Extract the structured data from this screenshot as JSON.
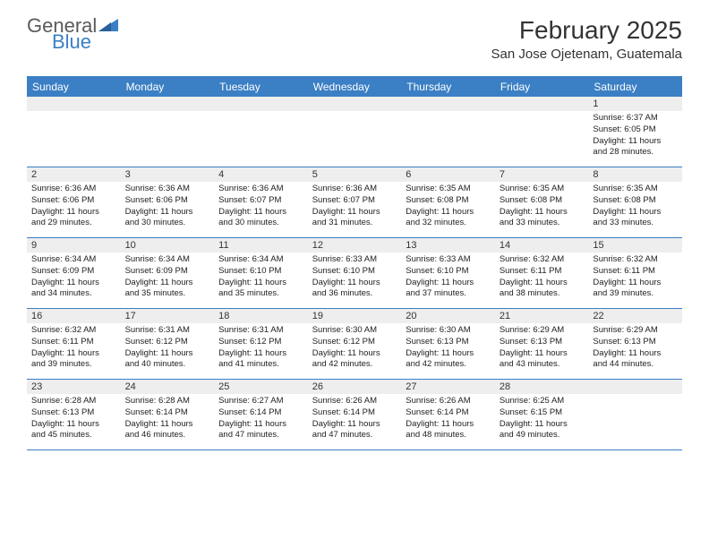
{
  "logo": {
    "general": "General",
    "blue": "Blue"
  },
  "title": "February 2025",
  "location": "San Jose Ojetenam, Guatemala",
  "day_headers": [
    "Sunday",
    "Monday",
    "Tuesday",
    "Wednesday",
    "Thursday",
    "Friday",
    "Saturday"
  ],
  "colors": {
    "brand_blue": "#3b7fc4",
    "header_gray": "#eeeeee",
    "text": "#222222",
    "logo_gray": "#5a5a5a"
  },
  "weeks": [
    [
      null,
      null,
      null,
      null,
      null,
      null,
      {
        "n": "1",
        "sr": "Sunrise: 6:37 AM",
        "ss": "Sunset: 6:05 PM",
        "dl1": "Daylight: 11 hours",
        "dl2": "and 28 minutes."
      }
    ],
    [
      {
        "n": "2",
        "sr": "Sunrise: 6:36 AM",
        "ss": "Sunset: 6:06 PM",
        "dl1": "Daylight: 11 hours",
        "dl2": "and 29 minutes."
      },
      {
        "n": "3",
        "sr": "Sunrise: 6:36 AM",
        "ss": "Sunset: 6:06 PM",
        "dl1": "Daylight: 11 hours",
        "dl2": "and 30 minutes."
      },
      {
        "n": "4",
        "sr": "Sunrise: 6:36 AM",
        "ss": "Sunset: 6:07 PM",
        "dl1": "Daylight: 11 hours",
        "dl2": "and 30 minutes."
      },
      {
        "n": "5",
        "sr": "Sunrise: 6:36 AM",
        "ss": "Sunset: 6:07 PM",
        "dl1": "Daylight: 11 hours",
        "dl2": "and 31 minutes."
      },
      {
        "n": "6",
        "sr": "Sunrise: 6:35 AM",
        "ss": "Sunset: 6:08 PM",
        "dl1": "Daylight: 11 hours",
        "dl2": "and 32 minutes."
      },
      {
        "n": "7",
        "sr": "Sunrise: 6:35 AM",
        "ss": "Sunset: 6:08 PM",
        "dl1": "Daylight: 11 hours",
        "dl2": "and 33 minutes."
      },
      {
        "n": "8",
        "sr": "Sunrise: 6:35 AM",
        "ss": "Sunset: 6:08 PM",
        "dl1": "Daylight: 11 hours",
        "dl2": "and 33 minutes."
      }
    ],
    [
      {
        "n": "9",
        "sr": "Sunrise: 6:34 AM",
        "ss": "Sunset: 6:09 PM",
        "dl1": "Daylight: 11 hours",
        "dl2": "and 34 minutes."
      },
      {
        "n": "10",
        "sr": "Sunrise: 6:34 AM",
        "ss": "Sunset: 6:09 PM",
        "dl1": "Daylight: 11 hours",
        "dl2": "and 35 minutes."
      },
      {
        "n": "11",
        "sr": "Sunrise: 6:34 AM",
        "ss": "Sunset: 6:10 PM",
        "dl1": "Daylight: 11 hours",
        "dl2": "and 35 minutes."
      },
      {
        "n": "12",
        "sr": "Sunrise: 6:33 AM",
        "ss": "Sunset: 6:10 PM",
        "dl1": "Daylight: 11 hours",
        "dl2": "and 36 minutes."
      },
      {
        "n": "13",
        "sr": "Sunrise: 6:33 AM",
        "ss": "Sunset: 6:10 PM",
        "dl1": "Daylight: 11 hours",
        "dl2": "and 37 minutes."
      },
      {
        "n": "14",
        "sr": "Sunrise: 6:32 AM",
        "ss": "Sunset: 6:11 PM",
        "dl1": "Daylight: 11 hours",
        "dl2": "and 38 minutes."
      },
      {
        "n": "15",
        "sr": "Sunrise: 6:32 AM",
        "ss": "Sunset: 6:11 PM",
        "dl1": "Daylight: 11 hours",
        "dl2": "and 39 minutes."
      }
    ],
    [
      {
        "n": "16",
        "sr": "Sunrise: 6:32 AM",
        "ss": "Sunset: 6:11 PM",
        "dl1": "Daylight: 11 hours",
        "dl2": "and 39 minutes."
      },
      {
        "n": "17",
        "sr": "Sunrise: 6:31 AM",
        "ss": "Sunset: 6:12 PM",
        "dl1": "Daylight: 11 hours",
        "dl2": "and 40 minutes."
      },
      {
        "n": "18",
        "sr": "Sunrise: 6:31 AM",
        "ss": "Sunset: 6:12 PM",
        "dl1": "Daylight: 11 hours",
        "dl2": "and 41 minutes."
      },
      {
        "n": "19",
        "sr": "Sunrise: 6:30 AM",
        "ss": "Sunset: 6:12 PM",
        "dl1": "Daylight: 11 hours",
        "dl2": "and 42 minutes."
      },
      {
        "n": "20",
        "sr": "Sunrise: 6:30 AM",
        "ss": "Sunset: 6:13 PM",
        "dl1": "Daylight: 11 hours",
        "dl2": "and 42 minutes."
      },
      {
        "n": "21",
        "sr": "Sunrise: 6:29 AM",
        "ss": "Sunset: 6:13 PM",
        "dl1": "Daylight: 11 hours",
        "dl2": "and 43 minutes."
      },
      {
        "n": "22",
        "sr": "Sunrise: 6:29 AM",
        "ss": "Sunset: 6:13 PM",
        "dl1": "Daylight: 11 hours",
        "dl2": "and 44 minutes."
      }
    ],
    [
      {
        "n": "23",
        "sr": "Sunrise: 6:28 AM",
        "ss": "Sunset: 6:13 PM",
        "dl1": "Daylight: 11 hours",
        "dl2": "and 45 minutes."
      },
      {
        "n": "24",
        "sr": "Sunrise: 6:28 AM",
        "ss": "Sunset: 6:14 PM",
        "dl1": "Daylight: 11 hours",
        "dl2": "and 46 minutes."
      },
      {
        "n": "25",
        "sr": "Sunrise: 6:27 AM",
        "ss": "Sunset: 6:14 PM",
        "dl1": "Daylight: 11 hours",
        "dl2": "and 47 minutes."
      },
      {
        "n": "26",
        "sr": "Sunrise: 6:26 AM",
        "ss": "Sunset: 6:14 PM",
        "dl1": "Daylight: 11 hours",
        "dl2": "and 47 minutes."
      },
      {
        "n": "27",
        "sr": "Sunrise: 6:26 AM",
        "ss": "Sunset: 6:14 PM",
        "dl1": "Daylight: 11 hours",
        "dl2": "and 48 minutes."
      },
      {
        "n": "28",
        "sr": "Sunrise: 6:25 AM",
        "ss": "Sunset: 6:15 PM",
        "dl1": "Daylight: 11 hours",
        "dl2": "and 49 minutes."
      },
      null
    ]
  ]
}
